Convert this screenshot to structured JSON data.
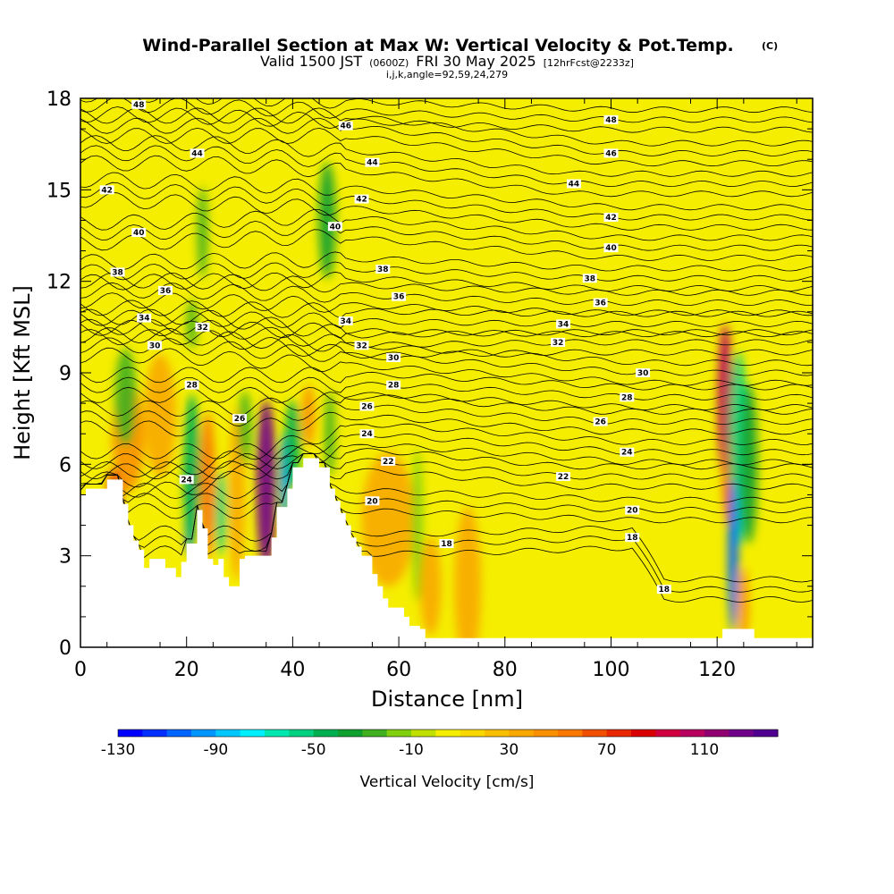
{
  "title": {
    "main": "Wind-Parallel Section at Max W: Vertical Velocity & Pot.Temp.",
    "copyright": "(C)",
    "valid_prefix": "Valid 1500 JST",
    "valid_zulu": "(0600Z)",
    "valid_date": "FRI 30 May 2025",
    "forecast": "[12hrFcst@2233z]",
    "params": "i,j,k,angle=92,59,24,279"
  },
  "chart_data": {
    "type": "contour",
    "xlabel": "Distance [nm]",
    "ylabel": "Height [Kft MSL]",
    "xlim": [
      0,
      138
    ],
    "ylim": [
      0,
      18
    ],
    "x_ticks": [
      0,
      20,
      40,
      60,
      80,
      100,
      120
    ],
    "x_tick_labels": [
      "0",
      "20",
      "40",
      "60",
      "80",
      "100",
      "120"
    ],
    "y_ticks": [
      0,
      3,
      6,
      9,
      12,
      15,
      18
    ],
    "y_tick_labels": [
      "0",
      "3",
      "6",
      "9",
      "12",
      "15",
      "18"
    ],
    "background_field_color": "#f5ee00",
    "terrain_color": "#ffffff",
    "terrain_profile": [
      [
        0,
        5.0
      ],
      [
        1,
        5.0
      ],
      [
        1,
        5.2
      ],
      [
        5,
        5.2
      ],
      [
        5,
        5.5
      ],
      [
        8,
        5.5
      ],
      [
        8,
        4.7
      ],
      [
        9,
        4.7
      ],
      [
        9,
        4.0
      ],
      [
        10,
        4.0
      ],
      [
        10,
        3.5
      ],
      [
        11,
        3.5
      ],
      [
        11,
        3.2
      ],
      [
        12,
        3.2
      ],
      [
        12,
        2.6
      ],
      [
        13,
        2.6
      ],
      [
        13,
        2.9
      ],
      [
        16,
        2.9
      ],
      [
        16,
        2.6
      ],
      [
        18,
        2.6
      ],
      [
        18,
        2.3
      ],
      [
        19,
        2.3
      ],
      [
        19,
        2.8
      ],
      [
        20,
        2.8
      ],
      [
        20,
        3.4
      ],
      [
        22,
        3.4
      ],
      [
        22,
        4.5
      ],
      [
        23,
        4.5
      ],
      [
        23,
        3.9
      ],
      [
        24,
        3.9
      ],
      [
        24,
        2.9
      ],
      [
        25,
        2.9
      ],
      [
        25,
        2.7
      ],
      [
        26,
        2.7
      ],
      [
        26,
        2.9
      ],
      [
        27,
        2.9
      ],
      [
        27,
        2.3
      ],
      [
        28,
        2.3
      ],
      [
        28,
        2.0
      ],
      [
        30,
        2.0
      ],
      [
        30,
        2.9
      ],
      [
        31,
        2.9
      ],
      [
        31,
        3.0
      ],
      [
        36,
        3.0
      ],
      [
        36,
        3.6
      ],
      [
        37,
        3.6
      ],
      [
        37,
        4.6
      ],
      [
        39,
        4.6
      ],
      [
        39,
        5.2
      ],
      [
        40,
        5.2
      ],
      [
        40,
        5.9
      ],
      [
        42,
        5.9
      ],
      [
        42,
        6.2
      ],
      [
        45,
        6.2
      ],
      [
        45,
        5.9
      ],
      [
        47,
        5.9
      ],
      [
        47,
        5.2
      ],
      [
        48,
        5.2
      ],
      [
        48,
        4.8
      ],
      [
        49,
        4.8
      ],
      [
        49,
        4.4
      ],
      [
        50,
        4.4
      ],
      [
        50,
        4.0
      ],
      [
        51,
        4.0
      ],
      [
        51,
        3.6
      ],
      [
        52,
        3.6
      ],
      [
        52,
        3.3
      ],
      [
        53,
        3.3
      ],
      [
        53,
        3.0
      ],
      [
        55,
        3.0
      ],
      [
        55,
        2.4
      ],
      [
        56,
        2.4
      ],
      [
        56,
        2.0
      ],
      [
        57,
        2.0
      ],
      [
        57,
        1.6
      ],
      [
        58,
        1.6
      ],
      [
        58,
        1.3
      ],
      [
        61,
        1.3
      ],
      [
        61,
        1.0
      ],
      [
        62,
        1.0
      ],
      [
        62,
        0.7
      ],
      [
        64,
        0.7
      ],
      [
        64,
        0.6
      ],
      [
        65,
        0.6
      ],
      [
        65,
        0.3
      ],
      [
        69,
        0.3
      ],
      [
        69,
        0.3
      ],
      [
        121,
        0.3
      ],
      [
        121,
        0.6
      ],
      [
        127,
        0.6
      ],
      [
        127,
        0.3
      ],
      [
        138,
        0.3
      ]
    ],
    "vertical_velocity_cells": [
      {
        "x": 6.5,
        "y": 5.0,
        "rx": 1.3,
        "ry": 0.9,
        "w": 70
      },
      {
        "x": 9,
        "y": 6.9,
        "rx": 3.0,
        "ry": 1.8,
        "w": 30
      },
      {
        "x": 8.5,
        "y": 8.2,
        "rx": 2.0,
        "ry": 1.6,
        "w": -30
      },
      {
        "x": 15,
        "y": 7.6,
        "rx": 3.0,
        "ry": 2.0,
        "w": 20
      },
      {
        "x": 20.5,
        "y": 4.6,
        "rx": 0.8,
        "ry": 1.6,
        "w": -110
      },
      {
        "x": 21,
        "y": 5.8,
        "rx": 1.6,
        "ry": 2.5,
        "w": -50
      },
      {
        "x": 21,
        "y": 10.6,
        "rx": 1.0,
        "ry": 0.8,
        "w": -30
      },
      {
        "x": 23,
        "y": 13.6,
        "rx": 1.0,
        "ry": 1.5,
        "w": -30
      },
      {
        "x": 24,
        "y": 5.3,
        "rx": 1.4,
        "ry": 2.4,
        "w": 40
      },
      {
        "x": 26.5,
        "y": 4.4,
        "rx": 1.0,
        "ry": 1.4,
        "w": -60
      },
      {
        "x": 29.5,
        "y": 5.0,
        "rx": 1.5,
        "ry": 2.8,
        "w": 20
      },
      {
        "x": 31,
        "y": 7.2,
        "rx": 1.2,
        "ry": 1.2,
        "w": -30
      },
      {
        "x": 35,
        "y": 5.3,
        "rx": 1.9,
        "ry": 2.8,
        "w": 110
      },
      {
        "x": 38.5,
        "y": 5.5,
        "rx": 0.9,
        "ry": 1.5,
        "w": -100
      },
      {
        "x": 40,
        "y": 6.7,
        "rx": 1.5,
        "ry": 1.4,
        "w": -50
      },
      {
        "x": 43,
        "y": 7.6,
        "rx": 1.2,
        "ry": 1.0,
        "w": 30
      },
      {
        "x": 46.5,
        "y": 14.0,
        "rx": 1.6,
        "ry": 1.9,
        "w": -40
      },
      {
        "x": 47,
        "y": 7.0,
        "rx": 1.0,
        "ry": 1.4,
        "w": -30
      },
      {
        "x": 58,
        "y": 4.2,
        "rx": 5.0,
        "ry": 2.2,
        "w": 20
      },
      {
        "x": 63.5,
        "y": 4.0,
        "rx": 1.0,
        "ry": 2.5,
        "w": -20
      },
      {
        "x": 73,
        "y": 2.0,
        "rx": 2.5,
        "ry": 2.6,
        "w": 25
      },
      {
        "x": 66,
        "y": 2.0,
        "rx": 2.0,
        "ry": 1.6,
        "w": 20
      },
      {
        "x": 121.5,
        "y": 8.1,
        "rx": 1.4,
        "ry": 2.5,
        "w": 90
      },
      {
        "x": 122.5,
        "y": 5.4,
        "rx": 1.4,
        "ry": 1.5,
        "w": 50
      },
      {
        "x": 124,
        "y": 6.5,
        "rx": 1.7,
        "ry": 3.2,
        "w": -60
      },
      {
        "x": 123,
        "y": 3.0,
        "rx": 1.0,
        "ry": 2.5,
        "w": -110
      },
      {
        "x": 125,
        "y": 1.4,
        "rx": 1.0,
        "ry": 1.2,
        "w": 30
      },
      {
        "x": 126,
        "y": 6.0,
        "rx": 1.6,
        "ry": 2.6,
        "w": -40
      }
    ],
    "potential_temperature_labels": [
      {
        "text": "48",
        "x": 11,
        "y": 17.8
      },
      {
        "text": "46",
        "x": 50,
        "y": 17.1
      },
      {
        "text": "48",
        "x": 100,
        "y": 17.3
      },
      {
        "text": "44",
        "x": 22,
        "y": 16.2
      },
      {
        "text": "46",
        "x": 100,
        "y": 16.2
      },
      {
        "text": "44",
        "x": 55,
        "y": 15.9
      },
      {
        "text": "42",
        "x": 5,
        "y": 15.0
      },
      {
        "text": "44",
        "x": 93,
        "y": 15.2
      },
      {
        "text": "42",
        "x": 53,
        "y": 14.7
      },
      {
        "text": "42",
        "x": 100,
        "y": 14.1
      },
      {
        "text": "40",
        "x": 11,
        "y": 13.6
      },
      {
        "text": "40",
        "x": 48,
        "y": 13.8
      },
      {
        "text": "40",
        "x": 100,
        "y": 13.1
      },
      {
        "text": "38",
        "x": 7,
        "y": 12.3
      },
      {
        "text": "38",
        "x": 57,
        "y": 12.4
      },
      {
        "text": "38",
        "x": 96,
        "y": 12.1
      },
      {
        "text": "36",
        "x": 16,
        "y": 11.7
      },
      {
        "text": "36",
        "x": 60,
        "y": 11.5
      },
      {
        "text": "36",
        "x": 98,
        "y": 11.3
      },
      {
        "text": "34",
        "x": 12,
        "y": 10.8
      },
      {
        "text": "34",
        "x": 50,
        "y": 10.7
      },
      {
        "text": "34",
        "x": 91,
        "y": 10.6
      },
      {
        "text": "32",
        "x": 23,
        "y": 10.5
      },
      {
        "text": "32",
        "x": 53,
        "y": 9.9
      },
      {
        "text": "32",
        "x": 90,
        "y": 10.0
      },
      {
        "text": "30",
        "x": 14,
        "y": 9.9
      },
      {
        "text": "30",
        "x": 59,
        "y": 9.5
      },
      {
        "text": "30",
        "x": 106,
        "y": 9.0
      },
      {
        "text": "28",
        "x": 21,
        "y": 8.6
      },
      {
        "text": "28",
        "x": 59,
        "y": 8.6
      },
      {
        "text": "28",
        "x": 103,
        "y": 8.2
      },
      {
        "text": "26",
        "x": 30,
        "y": 7.5
      },
      {
        "text": "26",
        "x": 54,
        "y": 7.9
      },
      {
        "text": "26",
        "x": 98,
        "y": 7.4
      },
      {
        "text": "24",
        "x": 20,
        "y": 5.5
      },
      {
        "text": "24",
        "x": 54,
        "y": 7.0
      },
      {
        "text": "24",
        "x": 103,
        "y": 6.4
      },
      {
        "text": "22",
        "x": 58,
        "y": 6.1
      },
      {
        "text": "22",
        "x": 91,
        "y": 5.6
      },
      {
        "text": "20",
        "x": 55,
        "y": 4.8
      },
      {
        "text": "20",
        "x": 104,
        "y": 4.5
      },
      {
        "text": "18",
        "x": 69,
        "y": 3.4
      },
      {
        "text": "18",
        "x": 104,
        "y": 3.6
      },
      {
        "text": "18",
        "x": 110,
        "y": 1.9
      }
    ],
    "colorbar": {
      "label": "Vertical Velocity [cm/s]",
      "tick_labels": [
        "-130",
        "-90",
        "-50",
        "-10",
        "30",
        "70",
        "110"
      ],
      "colors": [
        "#0000ff",
        "#0030ff",
        "#0064ff",
        "#0096ff",
        "#00c8ff",
        "#00f0ff",
        "#00e8b0",
        "#00d080",
        "#00b050",
        "#10a030",
        "#40b020",
        "#80d010",
        "#c0e000",
        "#f5ee00",
        "#f8d800",
        "#f8c000",
        "#f8a800",
        "#f89000",
        "#f87800",
        "#f05000",
        "#e82800",
        "#d80000",
        "#d00040",
        "#b80060",
        "#900070",
        "#70008a",
        "#500090"
      ]
    }
  }
}
